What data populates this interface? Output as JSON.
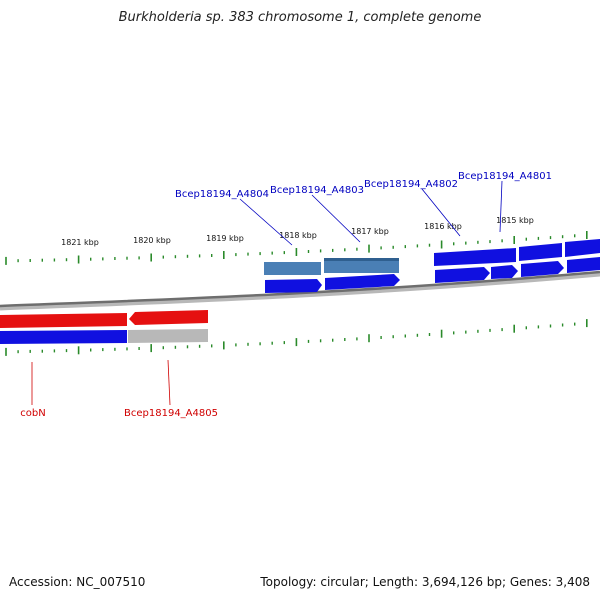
{
  "title": "Burkholderia sp. 383 chromosome 1, complete genome",
  "footer": {
    "accession": "Accession: NC_007510",
    "summary": "Topology: circular; Length: 3,694,126 bp; Genes: 3,408"
  },
  "colors": {
    "backbone": "#7a7a7a",
    "tick": "#2a8a2a",
    "forward_gene": "#1010e0",
    "forward_cds": "#4a7fb5",
    "reverse_gene": "#e51010",
    "reverse_pseudo": "#b8b8b8",
    "label_blue": "#0000c0",
    "label_red": "#d00000"
  },
  "scale": {
    "labels": [
      "1821 kbp",
      "1820 kbp",
      "1819 kbp",
      "1818 kbp",
      "1817 kbp",
      "1816 kbp",
      "1815 kbp"
    ]
  },
  "gene_labels": {
    "forward": [
      "Bcep18194_A4804",
      "Bcep18194_A4803",
      "Bcep18194_A4802",
      "Bcep18194_A4801"
    ],
    "reverse": [
      "cobN",
      "Bcep18194_A4805"
    ]
  }
}
